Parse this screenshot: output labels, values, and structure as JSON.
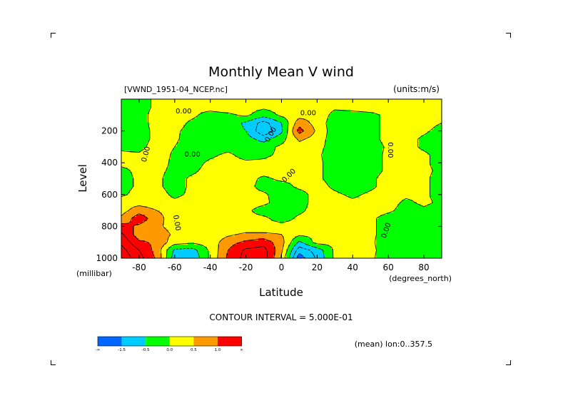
{
  "chart_data": {
    "type": "heatmap",
    "title": "Monthly Mean V wind",
    "dataset_label": "[VWND_1951-04_NCEP.nc]",
    "units_label": "(units:m/s)",
    "xlabel": "Latitude",
    "x_units": "(degrees_north)",
    "ylabel": "Level",
    "y_units": "(millibar)",
    "xlim": [
      -90,
      90
    ],
    "ylim": [
      1000,
      0
    ],
    "x_ticks": [
      -80,
      -60,
      -40,
      -20,
      0,
      20,
      40,
      60,
      80
    ],
    "y_ticks": [
      200,
      400,
      600,
      800,
      1000
    ],
    "contour_label": "0.00",
    "contour_interval_text": "CONTOUR INTERVAL = 5.000E-01",
    "mean_text": "(mean) lon:0..357.5",
    "legend": {
      "colors": [
        "#0066ff",
        "#00ccff",
        "#00ff00",
        "#00cc00",
        "#ffff00",
        "#ff9900",
        "#ff0000"
      ],
      "labels": [
        "-∞",
        "-1.5",
        "-0.5",
        "0.0",
        "0.5",
        "1.0",
        "∞"
      ]
    },
    "lat": [
      -90,
      -80,
      -70,
      -60,
      -50,
      -40,
      -30,
      -20,
      -10,
      0,
      10,
      20,
      30,
      40,
      50,
      60,
      70,
      80,
      90
    ],
    "lev": [
      50,
      100,
      150,
      200,
      250,
      300,
      350,
      400,
      450,
      500,
      550,
      600,
      650,
      700,
      750,
      800,
      850,
      900,
      950,
      1000
    ],
    "values": [
      [
        -0.1,
        -0.2,
        0.1,
        0.2,
        0.1,
        0.2,
        0.3,
        0.2,
        0.1,
        0.2,
        0.2,
        0.3,
        0.1,
        0.2,
        0.2,
        0.1,
        0.2,
        0.3,
        0.2
      ],
      [
        -0.1,
        -0.2,
        0.2,
        0.2,
        0.1,
        -0.2,
        -0.1,
        0.1,
        -0.3,
        0.1,
        0.3,
        0.4,
        -0.2,
        -0.2,
        -0.1,
        0.1,
        0.3,
        0.2,
        0.1
      ],
      [
        -0.2,
        -0.2,
        0.2,
        0.2,
        -0.1,
        -0.3,
        -0.2,
        -0.6,
        -1.2,
        -0.5,
        0.8,
        0.3,
        -0.3,
        -0.3,
        -0.2,
        0.2,
        0.3,
        0.2,
        0.0
      ],
      [
        -0.2,
        -0.3,
        0.2,
        0.1,
        -0.2,
        -0.3,
        -0.3,
        -0.5,
        -1.4,
        -0.6,
        1.2,
        0.4,
        -0.3,
        -0.3,
        -0.2,
        0.2,
        0.3,
        0.1,
        -0.2
      ],
      [
        -0.2,
        -0.3,
        0.2,
        0.1,
        -0.3,
        -0.3,
        -0.2,
        -0.3,
        -0.7,
        -0.2,
        0.6,
        0.3,
        -0.3,
        -0.3,
        -0.2,
        0.2,
        0.2,
        -0.1,
        -0.3
      ],
      [
        -0.1,
        -0.2,
        0.3,
        0.0,
        -0.3,
        -0.2,
        -0.2,
        -0.2,
        -0.2,
        0.1,
        0.3,
        0.2,
        -0.3,
        -0.3,
        -0.3,
        0.1,
        0.2,
        -0.1,
        -0.3
      ],
      [
        0.1,
        0.1,
        0.3,
        -0.1,
        -0.3,
        -0.1,
        0.1,
        -0.2,
        -0.1,
        0.1,
        0.2,
        0.1,
        -0.3,
        -0.3,
        -0.2,
        0.1,
        0.2,
        0.1,
        -0.2
      ],
      [
        0.1,
        0.1,
        0.2,
        -0.1,
        -0.2,
        0.1,
        0.2,
        0.1,
        0.1,
        0.2,
        0.2,
        0.1,
        -0.2,
        -0.3,
        -0.2,
        0.1,
        0.2,
        0.1,
        -0.2
      ],
      [
        -0.1,
        0.1,
        0.1,
        -0.1,
        -0.1,
        0.2,
        0.3,
        0.1,
        0.2,
        0.3,
        0.2,
        0.1,
        -0.2,
        -0.3,
        -0.2,
        0.1,
        0.2,
        0.1,
        -0.1
      ],
      [
        -0.2,
        0.1,
        0.1,
        -0.2,
        0.1,
        0.2,
        0.3,
        0.2,
        -0.1,
        0.1,
        0.1,
        0.1,
        -0.2,
        -0.3,
        -0.1,
        0.2,
        0.2,
        0.1,
        -0.2
      ],
      [
        -0.2,
        0.1,
        0.1,
        -0.2,
        0.1,
        0.2,
        0.3,
        0.2,
        -0.2,
        -0.2,
        0.1,
        0.2,
        -0.1,
        -0.3,
        -0.1,
        0.2,
        0.2,
        0.1,
        -0.2
      ],
      [
        -0.1,
        0.2,
        0.2,
        -0.1,
        0.1,
        0.2,
        0.3,
        0.2,
        0.1,
        -0.3,
        -0.2,
        0.2,
        0.1,
        -0.1,
        0.1,
        0.2,
        0.1,
        0.1,
        -0.2
      ],
      [
        0.3,
        0.3,
        0.2,
        0.1,
        0.2,
        0.3,
        0.3,
        0.2,
        0.1,
        -0.2,
        -0.2,
        0.2,
        0.2,
        0.1,
        0.2,
        0.2,
        -0.1,
        0.1,
        -0.1
      ],
      [
        0.3,
        0.8,
        0.5,
        0.3,
        0.2,
        0.2,
        0.3,
        0.1,
        -0.2,
        -0.3,
        -0.1,
        0.2,
        0.3,
        0.2,
        0.2,
        0.1,
        -0.2,
        -0.1,
        -0.2
      ],
      [
        0.6,
        1.3,
        0.7,
        0.2,
        0.3,
        0.2,
        0.2,
        0.1,
        0.1,
        -0.2,
        0.1,
        0.2,
        0.2,
        0.2,
        0.1,
        -0.2,
        -0.3,
        -0.2,
        -0.1
      ],
      [
        1.2,
        0.9,
        0.6,
        0.3,
        0.3,
        0.2,
        0.2,
        0.1,
        0.1,
        0.2,
        0.1,
        0.1,
        0.2,
        0.2,
        0.1,
        -0.2,
        -0.2,
        -0.1,
        -0.2
      ],
      [
        1.6,
        0.7,
        0.8,
        0.4,
        0.3,
        0.2,
        0.4,
        0.6,
        0.6,
        0.5,
        0.1,
        0.1,
        0.1,
        0.2,
        0.1,
        -0.2,
        -0.2,
        -0.1,
        -0.2
      ],
      [
        1.9,
        1.1,
        0.9,
        0.2,
        0.1,
        0.2,
        0.8,
        1.1,
        1.3,
        0.7,
        -0.6,
        0.2,
        0.1,
        0.1,
        0.1,
        -0.3,
        -0.1,
        -0.2,
        -0.3
      ],
      [
        2.2,
        1.5,
        0.8,
        -0.6,
        -0.7,
        0.1,
        1.0,
        1.6,
        1.7,
        0.6,
        -1.3,
        -0.8,
        0.1,
        0.1,
        0.1,
        -0.2,
        -0.2,
        -0.3,
        -0.3
      ],
      [
        2.4,
        1.7,
        0.9,
        -0.8,
        -0.9,
        0.1,
        1.1,
        1.7,
        1.8,
        0.4,
        -1.8,
        -0.9,
        0.1,
        0.1,
        0.1,
        -0.3,
        -0.3,
        -0.3,
        -0.4
      ]
    ]
  }
}
